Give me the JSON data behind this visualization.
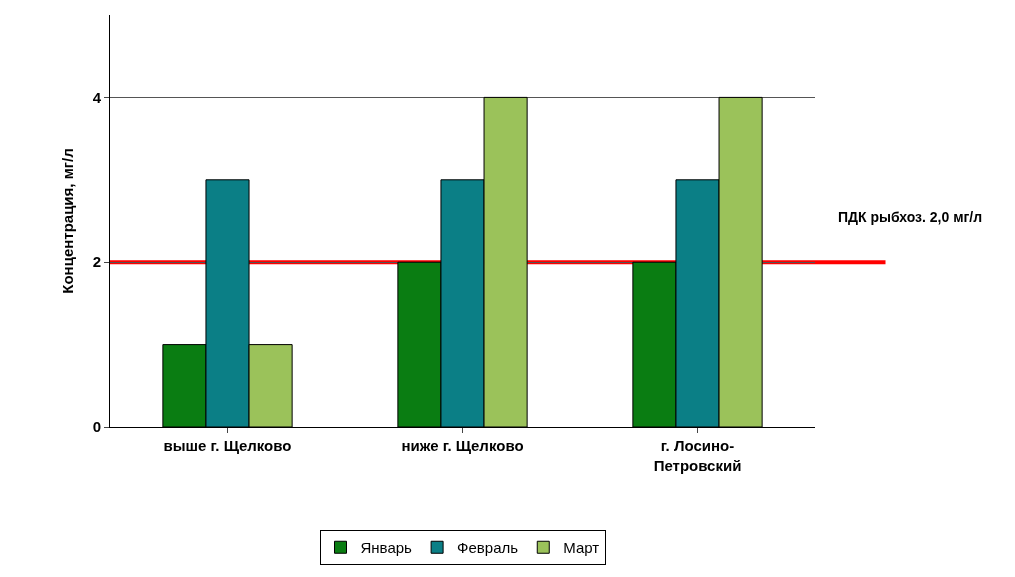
{
  "chart_data": {
    "type": "bar",
    "ylabel": "Концентрация, мг/л",
    "categories": [
      "выше г. Щелково",
      "ниже г. Щелково",
      "г. Лосино-Петровский"
    ],
    "series": [
      {
        "name": "Январь",
        "color": "#0a7d12",
        "values": [
          1,
          2,
          2
        ]
      },
      {
        "name": "Февраль",
        "color": "#0b7f86",
        "values": [
          3,
          3,
          3
        ]
      },
      {
        "name": "Март",
        "color": "#9bc25a",
        "values": [
          1,
          4,
          4
        ]
      }
    ],
    "ylim": [
      0,
      5
    ],
    "yticks": [
      0,
      2,
      4
    ],
    "grid": "y",
    "legend": "bottom",
    "ref_lines": [
      {
        "axis": "y",
        "value": 2,
        "label": "ПДК рыбхоз. 2,0 мг/л",
        "color": "#ff0000"
      }
    ]
  }
}
